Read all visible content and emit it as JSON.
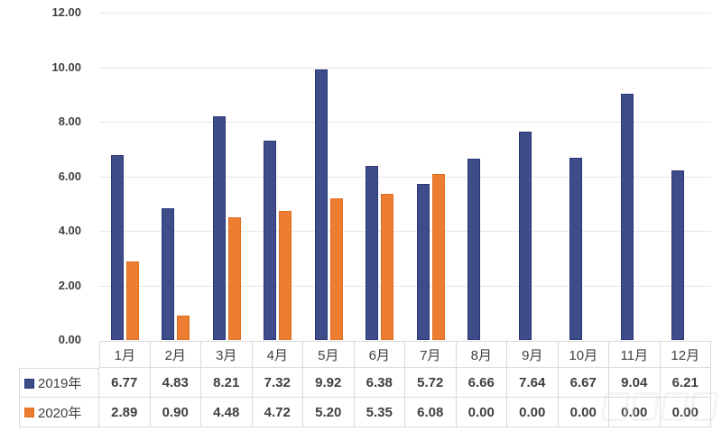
{
  "chart": {
    "background": "#FFFFFF",
    "gridline_color": "#E6E6E6",
    "table_border_color": "#D9D9D9",
    "text_color": "#3F3F3F",
    "y_axis": {
      "min": 0,
      "max": 12,
      "step": 2,
      "tick_labels": [
        "0.00",
        "2.00",
        "4.00",
        "6.00",
        "8.00",
        "10.00",
        "12.00"
      ]
    }
  },
  "chart_data": {
    "type": "bar",
    "title": "",
    "xlabel": "",
    "ylabel": "",
    "ylim": [
      0,
      12
    ],
    "grid": true,
    "legend_position": "data-table-left",
    "categories": [
      "1月",
      "2月",
      "3月",
      "4月",
      "5月",
      "6月",
      "7月",
      "8月",
      "9月",
      "10月",
      "11月",
      "12月"
    ],
    "series": [
      {
        "name": "2019年",
        "color": "#3F4C8A",
        "border_color": "#2A3776",
        "values": [
          6.77,
          4.83,
          8.21,
          7.32,
          9.92,
          6.38,
          5.72,
          6.66,
          7.64,
          6.67,
          9.04,
          6.21
        ],
        "values_display": [
          "6.77",
          "4.83",
          "8.21",
          "7.32",
          "9.92",
          "6.38",
          "5.72",
          "6.66",
          "7.64",
          "6.67",
          "9.04",
          "6.21"
        ]
      },
      {
        "name": "2020年",
        "color": "#ED7D31",
        "border_color": "#DE6F1F",
        "values": [
          2.89,
          0.9,
          4.48,
          4.72,
          5.2,
          5.35,
          6.08,
          0.0,
          0.0,
          0.0,
          0.0,
          0.0
        ],
        "values_display": [
          "2.89",
          "0.90",
          "4.48",
          "4.72",
          "5.20",
          "5.35",
          "6.08",
          "0.00",
          "0.00",
          "0.00",
          "0.00",
          "0.00"
        ]
      }
    ]
  }
}
